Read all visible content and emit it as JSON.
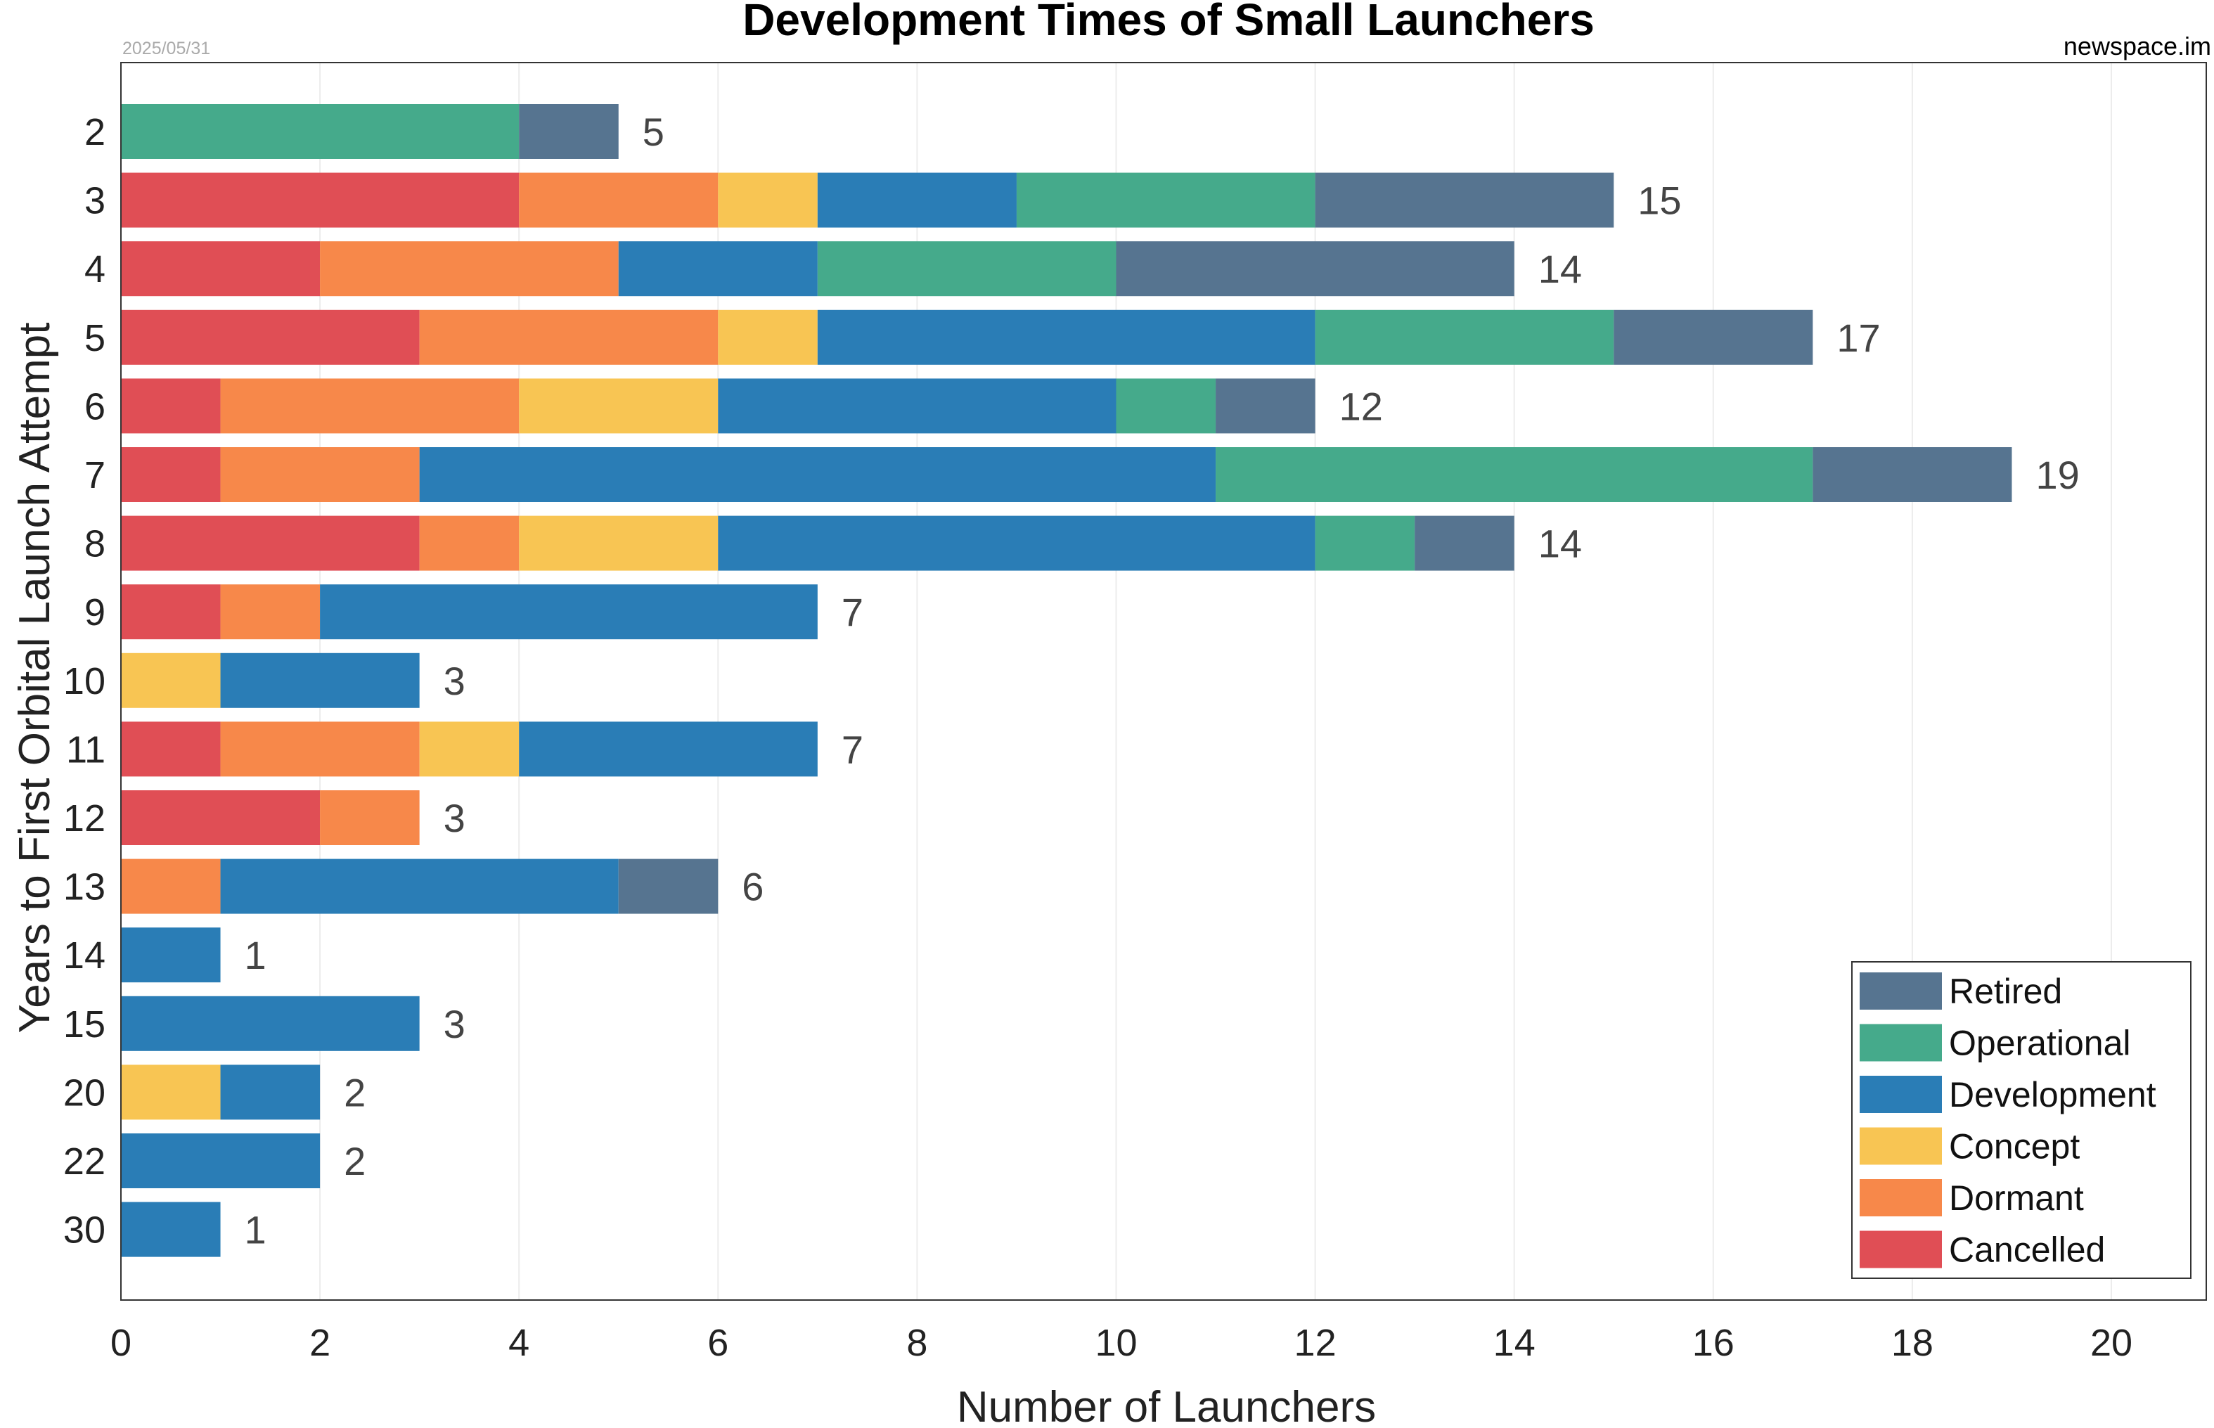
{
  "chart_data": {
    "type": "bar",
    "orientation": "horizontal",
    "stacked": true,
    "title": "Development Times of Small Launchers",
    "date": "2025/05/31",
    "source": "newspace.im",
    "xlabel": "Number of Launchers",
    "ylabel": "Years to First Orbital Launch Attempt",
    "xlim": [
      0,
      21
    ],
    "xticks": [
      0,
      2,
      4,
      6,
      8,
      10,
      12,
      14,
      16,
      18,
      20
    ],
    "grid": "vertical",
    "legend_position": "bottom-right",
    "categories": [
      "2",
      "3",
      "4",
      "5",
      "6",
      "7",
      "8",
      "9",
      "10",
      "11",
      "12",
      "13",
      "14",
      "15",
      "20",
      "22",
      "30"
    ],
    "series": [
      {
        "name": "Cancelled",
        "color": "#e04e55",
        "values": [
          0,
          4,
          2,
          3,
          1,
          1,
          3,
          1,
          0,
          1,
          2,
          0,
          0,
          0,
          0,
          0,
          0
        ]
      },
      {
        "name": "Dormant",
        "color": "#f7884a",
        "values": [
          0,
          2,
          3,
          3,
          3,
          2,
          1,
          1,
          0,
          2,
          1,
          1,
          0,
          0,
          0,
          0,
          0
        ]
      },
      {
        "name": "Concept",
        "color": "#f8c553",
        "values": [
          0,
          1,
          0,
          1,
          2,
          0,
          2,
          0,
          1,
          1,
          0,
          0,
          0,
          0,
          1,
          0,
          0
        ]
      },
      {
        "name": "Development",
        "color": "#2a7db6",
        "values": [
          0,
          2,
          2,
          5,
          4,
          8,
          6,
          5,
          2,
          3,
          0,
          4,
          1,
          3,
          1,
          2,
          1
        ]
      },
      {
        "name": "Operational",
        "color": "#45aa8b",
        "values": [
          4,
          3,
          3,
          3,
          1,
          6,
          1,
          0,
          0,
          0,
          0,
          0,
          0,
          0,
          0,
          0,
          0
        ]
      },
      {
        "name": "Retired",
        "color": "#567490",
        "values": [
          1,
          3,
          4,
          2,
          1,
          2,
          1,
          0,
          0,
          0,
          0,
          1,
          0,
          0,
          0,
          0,
          0
        ]
      }
    ],
    "totals": [
      5,
      15,
      14,
      17,
      12,
      19,
      14,
      7,
      3,
      7,
      3,
      6,
      1,
      3,
      2,
      2,
      1
    ],
    "legend_order": [
      "Retired",
      "Operational",
      "Development",
      "Concept",
      "Dormant",
      "Cancelled"
    ]
  }
}
